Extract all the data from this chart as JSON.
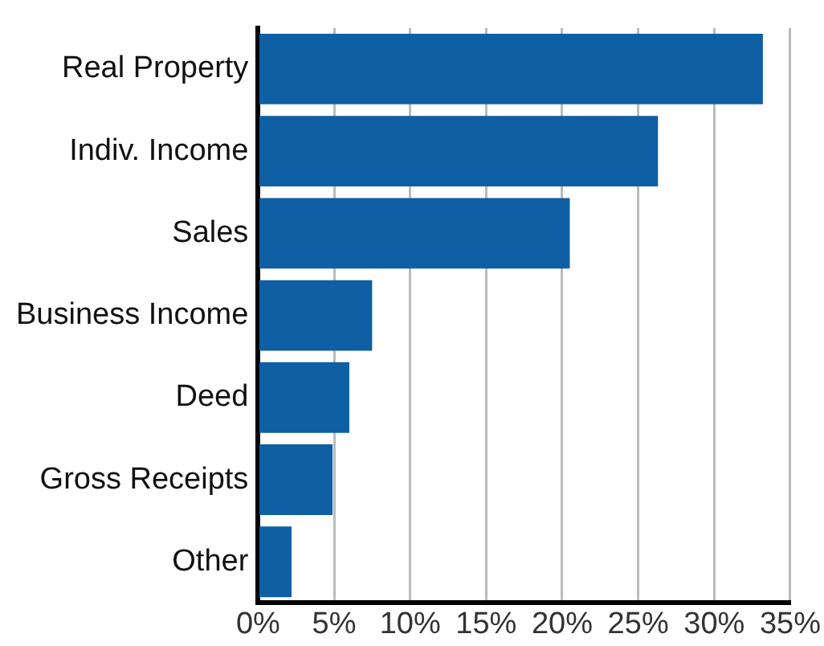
{
  "chart_data": {
    "type": "bar",
    "orientation": "horizontal",
    "categories": [
      "Real Property",
      "Indiv. Income",
      "Sales",
      "Business Income",
      "Deed",
      "Gross Receipts",
      "Other"
    ],
    "values": [
      33.2,
      26.3,
      20.5,
      7.5,
      6.0,
      4.9,
      2.2
    ],
    "color": "#0e5fa3",
    "xlim": [
      0,
      35
    ],
    "xticks": [
      {
        "value": 0,
        "label": "0%"
      },
      {
        "value": 5,
        "label": "5%"
      },
      {
        "value": 10,
        "label": "10%"
      },
      {
        "value": 15,
        "label": "15%"
      },
      {
        "value": 20,
        "label": "20%"
      },
      {
        "value": 25,
        "label": "25%"
      },
      {
        "value": 30,
        "label": "30%"
      },
      {
        "value": 35,
        "label": "35%"
      }
    ],
    "grid": "x"
  }
}
